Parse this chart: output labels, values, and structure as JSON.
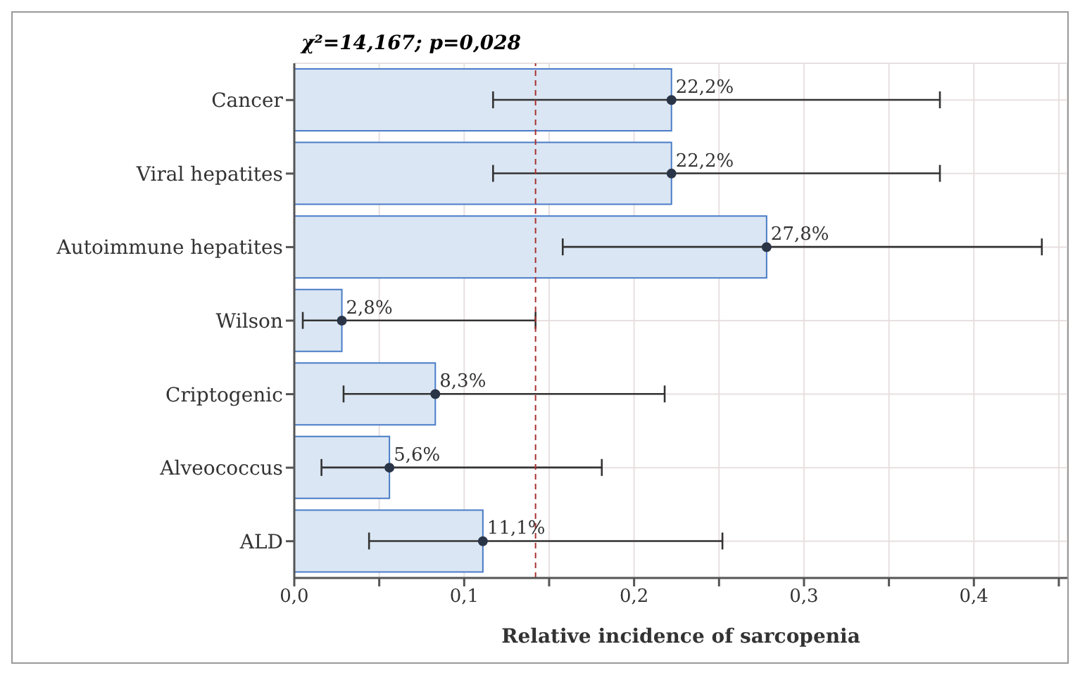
{
  "chart_data": {
    "type": "bar",
    "orientation": "horizontal",
    "title": "χ²=14,167; p=0,028",
    "xlabel": "Relative incidence of sarcopenia",
    "categories": [
      "Cancer",
      "Viral hepatites",
      "Autoimmune hepatites",
      "Wilson",
      "Criptogenic",
      "Alveococcus",
      "ALD"
    ],
    "series": [
      {
        "color": "#dae6f3",
        "values": [
          0.222,
          0.222,
          0.278,
          0.028,
          0.083,
          0.056,
          0.111
        ],
        "value_labels": [
          "22,2%",
          "22,2%",
          "27,8%",
          "2,8%",
          "8,3%",
          "5,6%",
          "11,1%"
        ],
        "errors": [
          [
            0.117,
            0.38
          ],
          [
            0.117,
            0.38
          ],
          [
            0.158,
            0.44
          ],
          [
            0.005,
            0.142
          ],
          [
            0.029,
            0.218
          ],
          [
            0.016,
            0.181
          ],
          [
            0.044,
            0.252
          ]
        ]
      },
      {
        "type": "scatter",
        "color": "#2b3548",
        "values": [
          0.222,
          0.222,
          0.278,
          0.028,
          0.083,
          0.056,
          0.111
        ]
      }
    ],
    "xlim": [
      0,
      0.455
    ],
    "xticks": [
      {
        "value": 0,
        "label": "0,0"
      },
      {
        "value": 0.05,
        "label": null
      },
      {
        "value": 0.1,
        "label": "0,1"
      },
      {
        "value": 0.15,
        "label": null
      },
      {
        "value": 0.2,
        "label": "0,2"
      },
      {
        "value": 0.25,
        "label": null
      },
      {
        "value": 0.3,
        "label": "0,3"
      },
      {
        "value": 0.35,
        "label": null
      },
      {
        "value": 0.4,
        "label": "0,4"
      },
      {
        "value": 0.45,
        "label": null
      }
    ],
    "ref_lines": [
      {
        "axis": "x",
        "value": 0.142,
        "line_style": "dashed",
        "color": "#a83232"
      }
    ],
    "grid": true
  }
}
